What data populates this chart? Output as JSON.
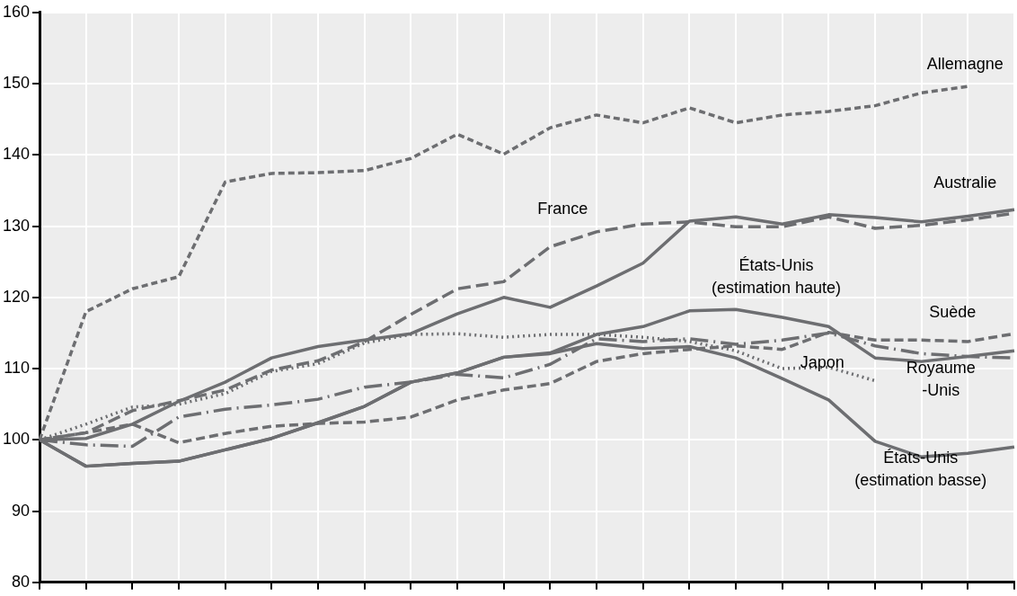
{
  "chart_data": {
    "type": "line",
    "categories": [
      null,
      null,
      null,
      null,
      null,
      null,
      null,
      null,
      null,
      null,
      null,
      null,
      null,
      null,
      null,
      null,
      null,
      null,
      null,
      null,
      null,
      null
    ],
    "ylim": [
      80,
      160
    ],
    "yticks": [
      80,
      90,
      100,
      110,
      120,
      130,
      140,
      150,
      160
    ],
    "grid": true,
    "legend": false,
    "marker": "none",
    "series": [
      {
        "name": "Allemagne",
        "color": "#6d6e71",
        "line_style": "dashed",
        "values": [
          100,
          118.0,
          121.2,
          122.9,
          136.2,
          137.4,
          137.5,
          137.8,
          139.5,
          142.9,
          140.1,
          143.8,
          145.6,
          144.5,
          146.6,
          144.5,
          145.6,
          146.1,
          146.9,
          148.7,
          149.6,
          null
        ]
      },
      {
        "name": "Australie",
        "color": "#6d6e71",
        "line_style": "solid",
        "values": [
          100,
          100.2,
          102.2,
          105.4,
          108.1,
          111.5,
          113.1,
          114.0,
          114.9,
          117.7,
          120.0,
          118.6,
          121.6,
          124.8,
          130.7,
          131.3,
          130.3,
          131.6,
          131.2,
          130.6,
          131.4,
          132.3
        ]
      },
      {
        "name": "France",
        "color": "#6d6e71",
        "line_style": "dashed",
        "values": [
          100,
          101.0,
          104.1,
          105.5,
          107.0,
          109.8,
          111.1,
          113.8,
          117.6,
          121.2,
          122.2,
          127.1,
          129.2,
          130.3,
          130.6,
          129.9,
          129.9,
          131.3,
          129.7,
          130.1,
          130.9,
          131.8
        ]
      },
      {
        "name": "États-Unis\n(estimation haute)",
        "color": "#6d6e71",
        "line_style": "solid",
        "values": [
          100,
          96.3,
          96.7,
          97.0,
          98.6,
          100.2,
          102.4,
          104.7,
          108.1,
          109.4,
          111.6,
          112.2,
          114.8,
          115.9,
          118.1,
          118.3,
          117.2,
          115.9,
          111.5,
          111.0,
          111.7,
          112.5
        ]
      },
      {
        "name": "Suède",
        "color": "#6d6e71",
        "line_style": "dashed",
        "values": [
          100,
          101.0,
          102.2,
          99.6,
          100.9,
          101.9,
          102.3,
          102.5,
          103.2,
          105.6,
          107.0,
          107.9,
          111.0,
          112.1,
          112.7,
          113.2,
          112.7,
          115.1,
          114.0,
          114.0,
          113.8,
          114.9
        ]
      },
      {
        "name": "Japon",
        "color": "#6d6e71",
        "line_style": "dotted",
        "values": [
          100,
          102.2,
          104.6,
          105.0,
          106.5,
          109.6,
          110.7,
          113.6,
          114.8,
          114.9,
          114.4,
          114.8,
          114.8,
          114.4,
          113.8,
          112.5,
          110.0,
          110.2,
          108.3,
          null,
          null,
          null
        ]
      },
      {
        "name": "Royaume\n-Unis",
        "color": "#6d6e71",
        "line_style": "dashed",
        "values": [
          100,
          99.3,
          99.1,
          103.2,
          104.3,
          104.9,
          105.7,
          107.4,
          108.1,
          109.2,
          108.7,
          110.6,
          114.2,
          113.8,
          114.2,
          113.4,
          114.0,
          115.0,
          113.2,
          112.1,
          111.7,
          111.5
        ]
      },
      {
        "name": "États-Unis\n(estimation basse)",
        "color": "#6d6e71",
        "line_style": "solid",
        "values": [
          100,
          96.3,
          96.7,
          97.0,
          98.6,
          100.2,
          102.4,
          104.7,
          108.1,
          109.4,
          111.6,
          112.1,
          113.5,
          112.8,
          113.1,
          111.5,
          108.6,
          105.6,
          99.8,
          97.6,
          98.1,
          99.0
        ]
      }
    ]
  }
}
